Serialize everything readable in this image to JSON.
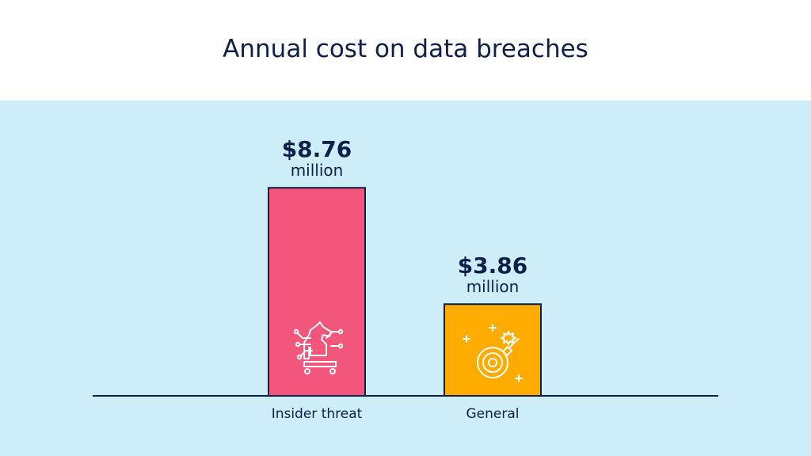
{
  "chart_data": {
    "type": "bar",
    "title": "Annual cost on data breaches",
    "categories": [
      "Insider threat",
      "General"
    ],
    "values": [
      8.76,
      3.86
    ],
    "value_labels": [
      "$8.76",
      "$3.86"
    ],
    "unit_label": "million",
    "bar_colors": [
      "#f2567a",
      "#ffab00"
    ],
    "icons": [
      "trojan-horse-icon",
      "bomb-icon"
    ],
    "xlabel": "",
    "ylabel": "",
    "grid": false
  },
  "colors": {
    "text": "#0f1f4d",
    "background": "#cdeef8",
    "axis": "#0f1f4d"
  }
}
